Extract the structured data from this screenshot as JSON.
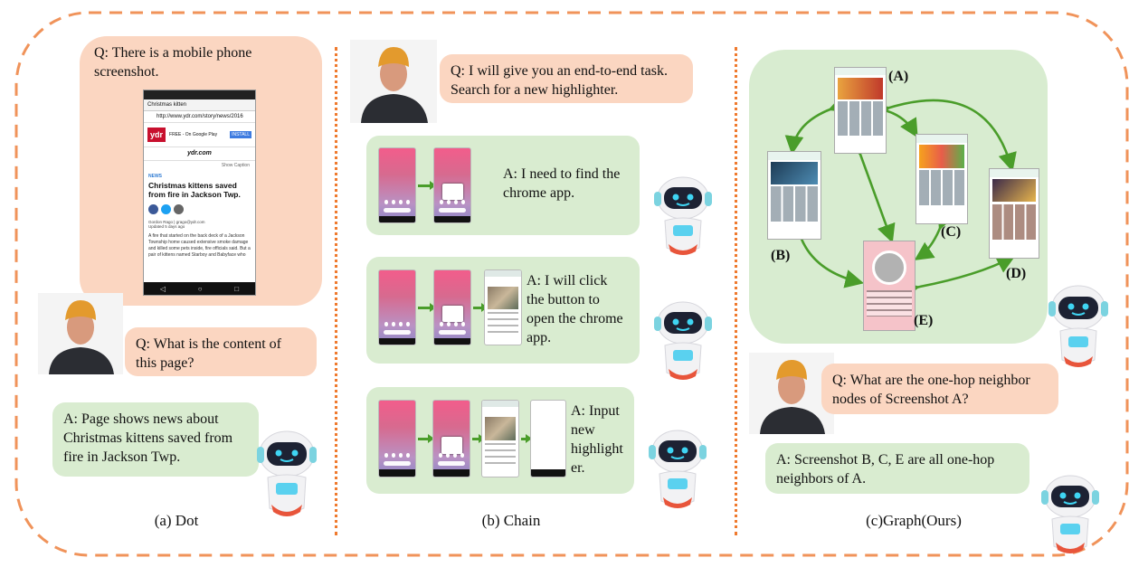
{
  "panels": {
    "dot": {
      "question1": "Q: There is a mobile phone screenshot.",
      "question2": "Q: What is the content of this page?",
      "answer": "A: Page shows news about Christmas kittens saved from fire in Jackson Twp.",
      "caption": "(a) Dot",
      "screenshot": {
        "tab_title": "Christmas kitten",
        "url": "http://www.ydr.com/story/news/2016",
        "promo_logo": "ydr",
        "promo_text": "FREE - On Google Play",
        "install_label": "INSTALL",
        "site": "ydr.com",
        "show_caption": "Show Caption",
        "section": "NEWS",
        "headline": "Christmas kittens saved from fire in Jackson Twp.",
        "author": "Gordon Rago | grago@ydr.com",
        "updated": "Updated 5 days ago",
        "body": "A fire that started on the back deck of a Jackson Township home caused extensive smoke damage and killed some pets inside, fire officials said. But a pair of kittens named Starboy and Babyface who"
      }
    },
    "chain": {
      "question": "Q: I will give you an end-to-end task. Search for a new highlighter.",
      "steps": [
        "A: I need to find the chrome app.",
        "A: I will click the button to open the chrome app.",
        "A: Input new highlight er."
      ],
      "caption": "(b) Chain"
    },
    "graph": {
      "node_labels": [
        "(A)",
        "(B)",
        "(C)",
        "(D)",
        "(E)"
      ],
      "question": "Q: What are the one-hop neighbor nodes of Screenshot A?",
      "answer": "A: Screenshot B, C, E are all one-hop neighbors of A.",
      "caption": "(c)Graph(Ours)"
    }
  },
  "colors": {
    "question_bubble": "#fbd6c1",
    "answer_bubble": "#d9ecd0",
    "dashed_border": "#f0935a",
    "divider": "#ef7a2e",
    "graph_edge": "#4a9d2a"
  },
  "icons": [
    "person-avatar",
    "robot-avatar",
    "green-arrow"
  ]
}
